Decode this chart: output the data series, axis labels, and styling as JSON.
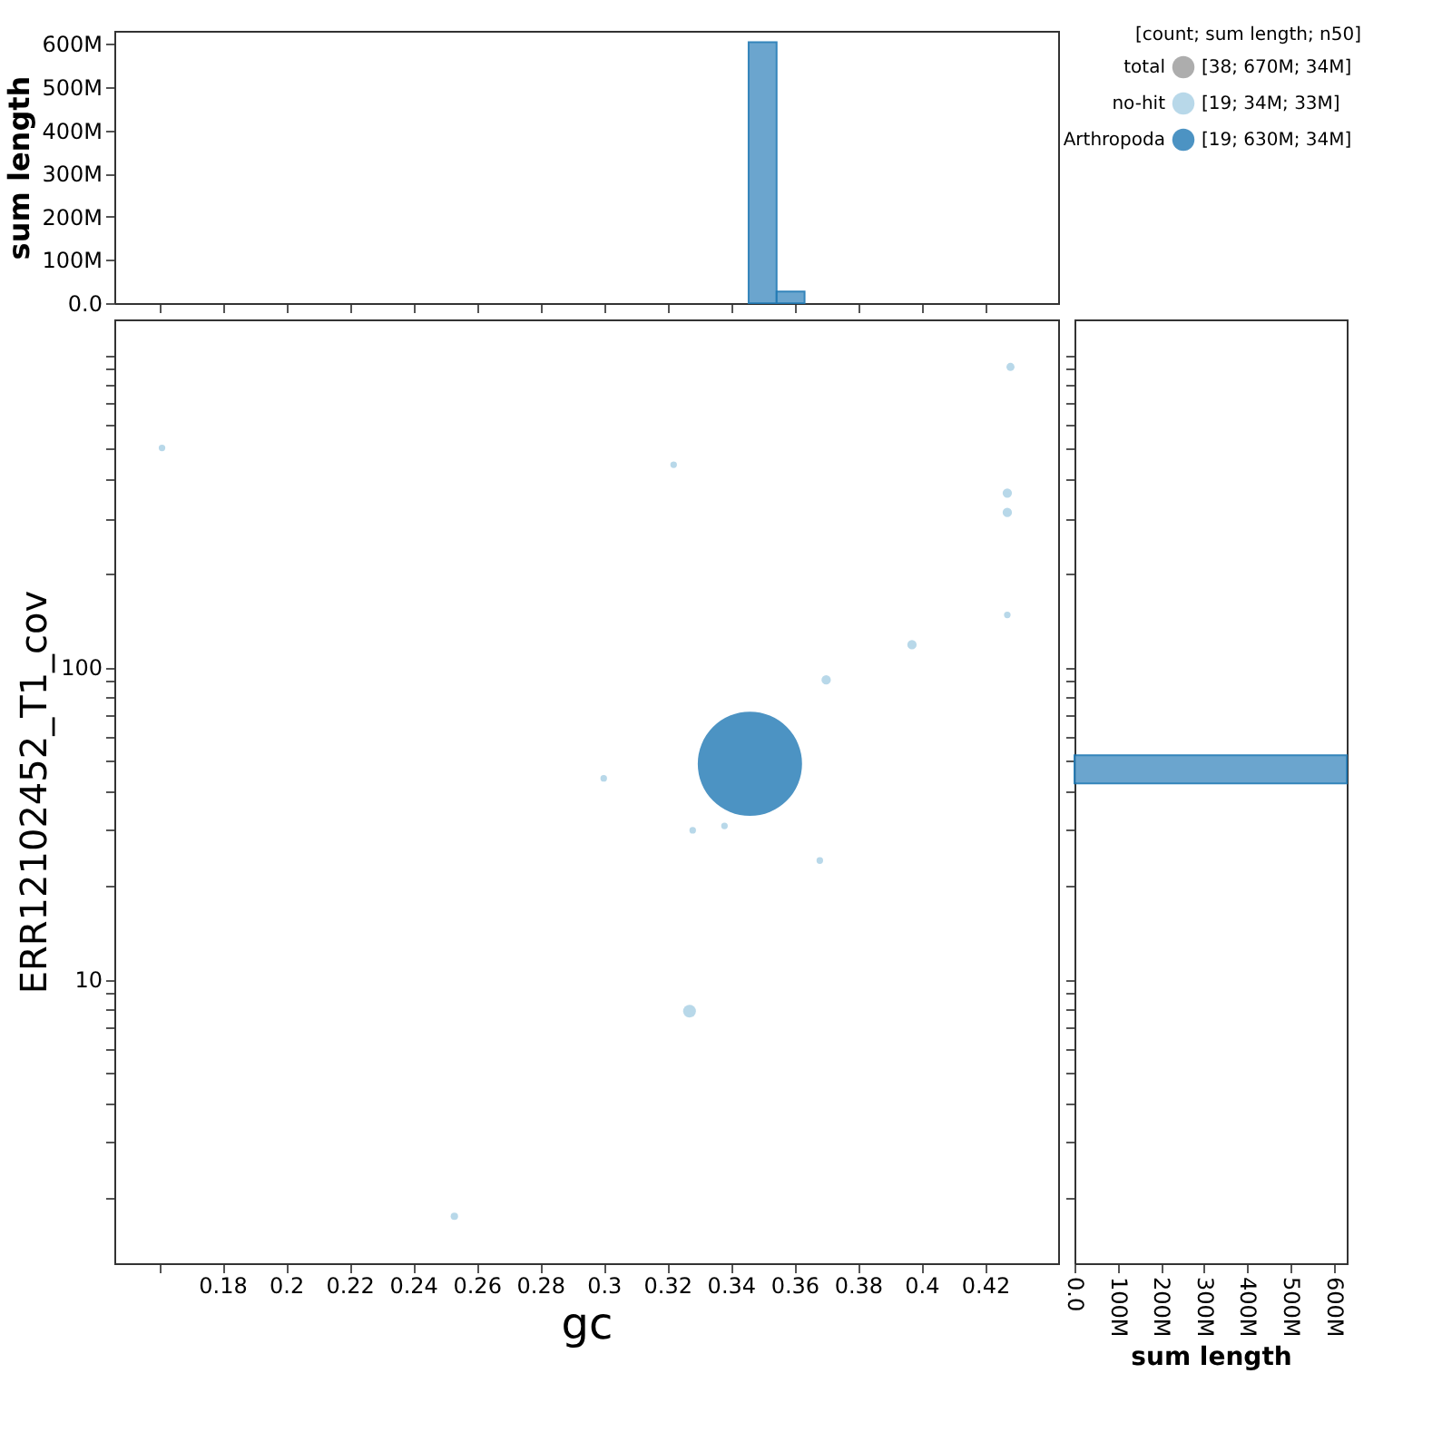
{
  "chart_data": [
    {
      "type": "histogram",
      "ylabel": "sum length",
      "bins": [
        0.3456,
        0.3544,
        0.3632
      ],
      "values": [
        604,
        27
      ],
      "color": "#5b9cc9",
      "xlim": [
        0.146,
        0.443
      ],
      "xticks": [
        {
          "value": 0.16,
          "label": null
        },
        {
          "value": 0.18,
          "label": null
        },
        {
          "value": 0.2,
          "label": null
        },
        {
          "value": 0.22,
          "label": null
        },
        {
          "value": 0.24,
          "label": null
        },
        {
          "value": 0.26,
          "label": null
        },
        {
          "value": 0.28,
          "label": null
        },
        {
          "value": 0.3,
          "label": null
        },
        {
          "value": 0.32,
          "label": null
        },
        {
          "value": 0.34,
          "label": null
        },
        {
          "value": 0.36,
          "label": null
        },
        {
          "value": 0.38,
          "label": null
        },
        {
          "value": 0.4,
          "label": null
        },
        {
          "value": 0.42,
          "label": null
        }
      ],
      "ylim": [
        0,
        630
      ],
      "yticks": [
        {
          "value": 0,
          "label": "0.0"
        },
        {
          "value": 100,
          "label": "100M"
        },
        {
          "value": 200,
          "label": "200M"
        },
        {
          "value": 300,
          "label": "300M"
        },
        {
          "value": 400,
          "label": "400M"
        },
        {
          "value": 500,
          "label": "500M"
        },
        {
          "value": 600,
          "label": "600M"
        }
      ],
      "tick_labels": "y"
    },
    {
      "type": "bubble",
      "xlabel": "gc",
      "ylabel": "ERR12102452_T1_cov",
      "legend_title": "[count; sum length; n50]",
      "legend": "top right",
      "log": "y",
      "annotations": [
        "[38; 670M; 34M]",
        "[19; 34M; 33M]",
        "[19; 630M; 34M]"
      ],
      "xlim": [
        0.146,
        0.443
      ],
      "xticks": [
        {
          "value": 0.16,
          "label": null
        },
        0.18,
        0.2,
        0.22,
        0.24,
        0.26,
        0.28,
        0.3,
        0.32,
        0.34,
        0.36,
        0.38,
        0.4,
        0.42
      ],
      "ylim": [
        1.23,
        1300
      ],
      "yticks": [
        {
          "value": 2,
          "label": null
        },
        {
          "value": 3,
          "label": null
        },
        {
          "value": 4,
          "label": null
        },
        {
          "value": 5,
          "label": null
        },
        {
          "value": 6,
          "label": null
        },
        {
          "value": 7,
          "label": null
        },
        {
          "value": 8,
          "label": null
        },
        {
          "value": 9,
          "label": null
        },
        10,
        {
          "value": 20,
          "label": null
        },
        {
          "value": 30,
          "label": null
        },
        {
          "value": 40,
          "label": null
        },
        {
          "value": 50,
          "label": null
        },
        {
          "value": 60,
          "label": null
        },
        {
          "value": 70,
          "label": null
        },
        {
          "value": 80,
          "label": null
        },
        {
          "value": 90,
          "label": null
        },
        100,
        {
          "value": 200,
          "label": null
        },
        {
          "value": 300,
          "label": null
        },
        {
          "value": 400,
          "label": null
        },
        {
          "value": 500,
          "label": null
        },
        {
          "value": 600,
          "label": null
        },
        {
          "value": 700,
          "label": null
        },
        {
          "value": 800,
          "label": null
        },
        {
          "value": 900,
          "label": null
        },
        {
          "value": 1000,
          "label": null
        }
      ],
      "series": [
        {
          "name": "total",
          "color": "#999999"
        },
        {
          "name": "no-hit",
          "color": "#a6cee3",
          "x": [
            0.161,
            0.322,
            0.428,
            0.427,
            0.427,
            0.427,
            0.397,
            0.37,
            0.3,
            0.328,
            0.338,
            0.368,
            0.327,
            0.253
          ],
          "values": [
            504,
            445,
            916,
            361,
            313,
            147,
            118,
            91,
            44,
            30,
            31,
            24,
            7.9,
            1.74
          ],
          "sizes": [
            0.004,
            0.004,
            0.006,
            0.008,
            0.008,
            0.004,
            0.008,
            0.008,
            0.004,
            0.004,
            0.004,
            0.004,
            0.015,
            0.005
          ]
        },
        {
          "name": "Arthropoda",
          "color": "#1f78b4",
          "x": [
            0.346
          ],
          "values": [
            49
          ],
          "sizes": [
            1
          ]
        }
      ]
    },
    {
      "type": "histogram",
      "orientation": "horizontal",
      "xlabel": "sum length",
      "bins": [
        42.4,
        52.2
      ],
      "values": [
        630
      ],
      "color": "#5b9cc9",
      "log": "y",
      "ylim": [
        1.23,
        1300
      ],
      "yticks": [
        {
          "value": 2,
          "label": null
        },
        {
          "value": 3,
          "label": null
        },
        {
          "value": 4,
          "label": null
        },
        {
          "value": 5,
          "label": null
        },
        {
          "value": 6,
          "label": null
        },
        {
          "value": 7,
          "label": null
        },
        {
          "value": 8,
          "label": null
        },
        {
          "value": 9,
          "label": null
        },
        {
          "value": 10,
          "label": null
        },
        {
          "value": 20,
          "label": null
        },
        {
          "value": 30,
          "label": null
        },
        {
          "value": 40,
          "label": null
        },
        {
          "value": 50,
          "label": null
        },
        {
          "value": 60,
          "label": null
        },
        {
          "value": 70,
          "label": null
        },
        {
          "value": 80,
          "label": null
        },
        {
          "value": 90,
          "label": null
        },
        {
          "value": 100,
          "label": null
        },
        {
          "value": 200,
          "label": null
        },
        {
          "value": 300,
          "label": null
        },
        {
          "value": 400,
          "label": null
        },
        {
          "value": 500,
          "label": null
        },
        {
          "value": 600,
          "label": null
        },
        {
          "value": 700,
          "label": null
        },
        {
          "value": 800,
          "label": null
        },
        {
          "value": 900,
          "label": null
        },
        {
          "value": 1000,
          "label": null
        }
      ],
      "xlim": [
        0,
        630
      ],
      "xticks": [
        {
          "value": 0,
          "label": "0.0"
        },
        {
          "value": 100,
          "label": "100M"
        },
        {
          "value": 200,
          "label": "200M"
        },
        {
          "value": 300,
          "label": "300M"
        },
        {
          "value": 400,
          "label": "400M"
        },
        {
          "value": 500,
          "label": "500M"
        },
        {
          "value": 600,
          "label": "600M"
        }
      ],
      "tick_labels": "x"
    }
  ]
}
